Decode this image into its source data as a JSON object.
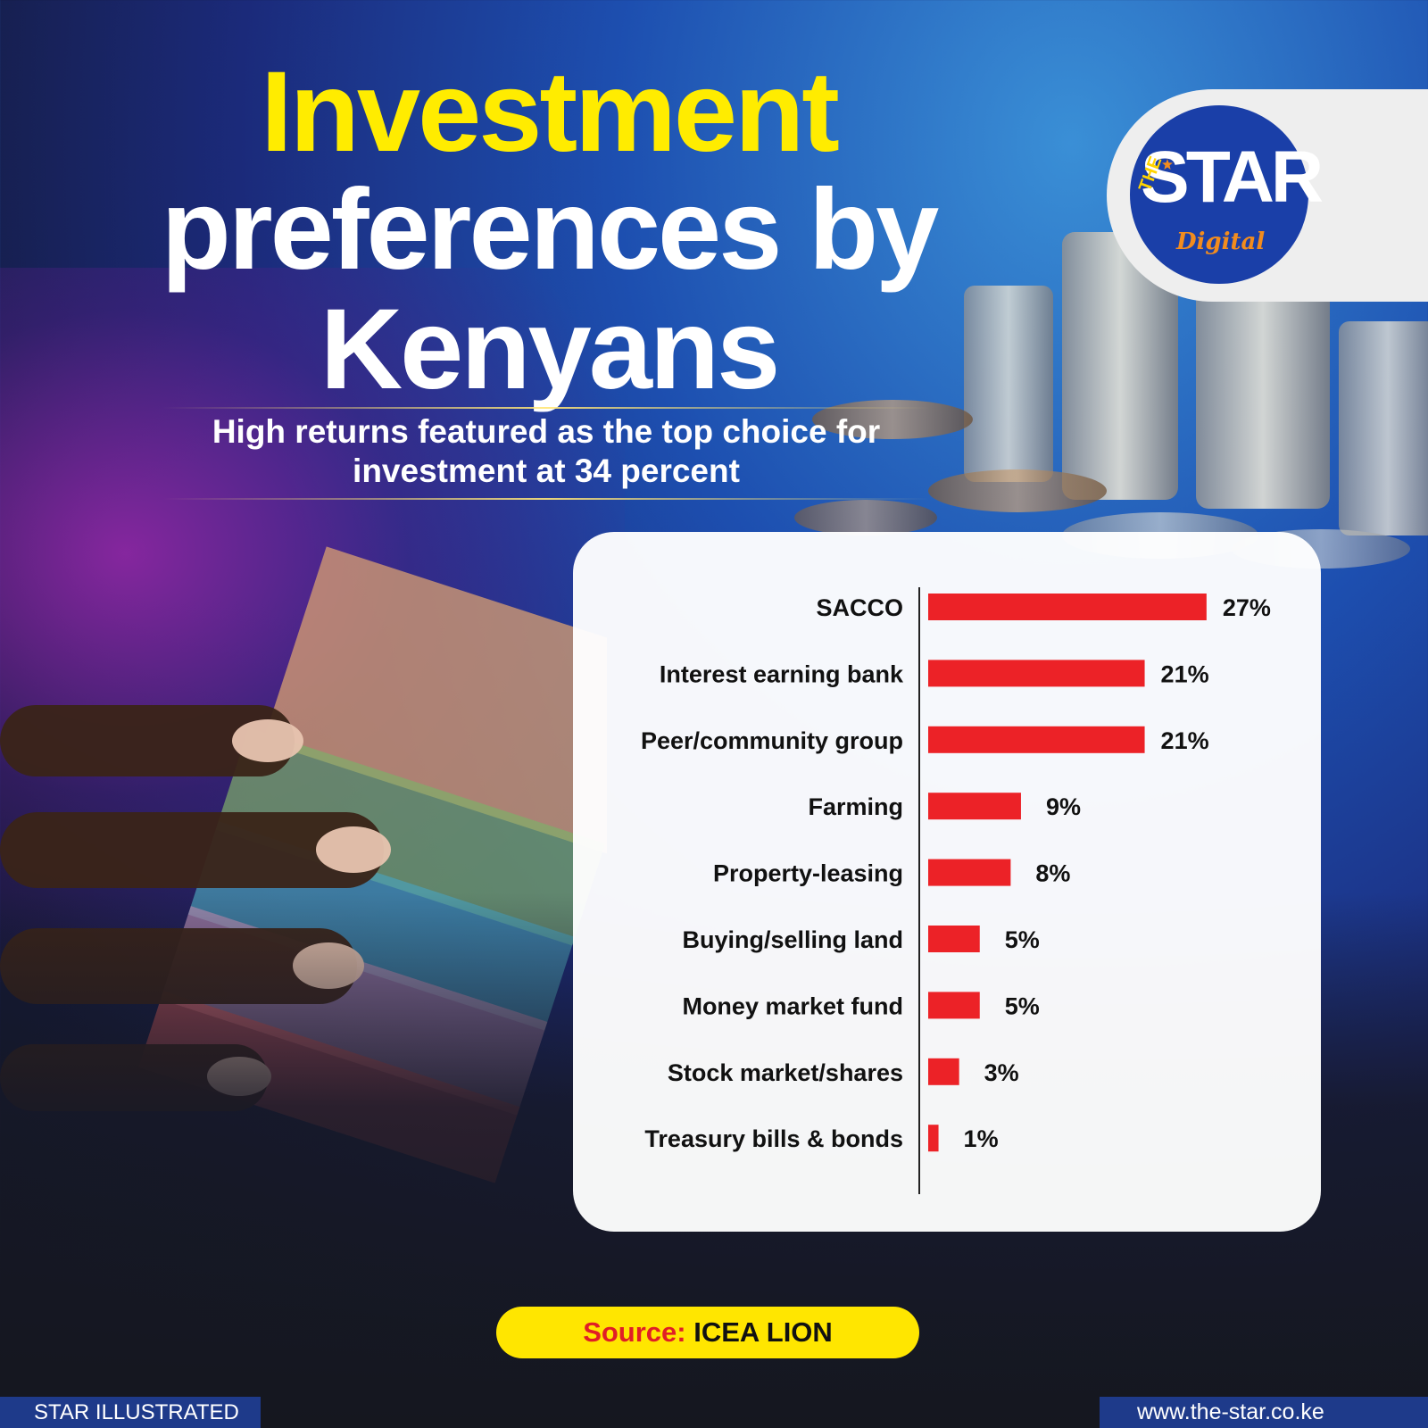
{
  "title": {
    "line1": "Investment",
    "line2": "preferences by",
    "line3": "Kenyans"
  },
  "subtitle": {
    "line1": "High returns featured as the top choice for",
    "line2": "investment at 34 percent"
  },
  "logo": {
    "the": "THE",
    "star": "STAR",
    "digital": "Digital"
  },
  "chart_data": {
    "type": "bar",
    "orientation": "horizontal",
    "categories": [
      "SACCO",
      "Interest earning bank",
      "Peer/community group",
      "Farming",
      "Property-leasing",
      "Buying/selling land",
      "Money market fund",
      "Stock market/shares",
      "Treasury bills & bonds"
    ],
    "values": [
      27,
      21,
      21,
      9,
      8,
      5,
      5,
      3,
      1
    ],
    "value_labels": [
      "27%",
      "21%",
      "21%",
      "9%",
      "8%",
      "5%",
      "5%",
      "3%",
      "1%"
    ],
    "unit": "%",
    "bar_color": "#ec2227",
    "grid": false,
    "legend": "none"
  },
  "source": {
    "label": "Source:",
    "value": "ICEA LION"
  },
  "footer": {
    "left": "STAR ILLUSTRATED",
    "right": "www.the-star.co.ke"
  },
  "colors": {
    "title_yellow": "#ffec00",
    "accent_red": "#ec2227",
    "brand_blue": "#1e3a8a",
    "pill_yellow": "#ffe600"
  }
}
